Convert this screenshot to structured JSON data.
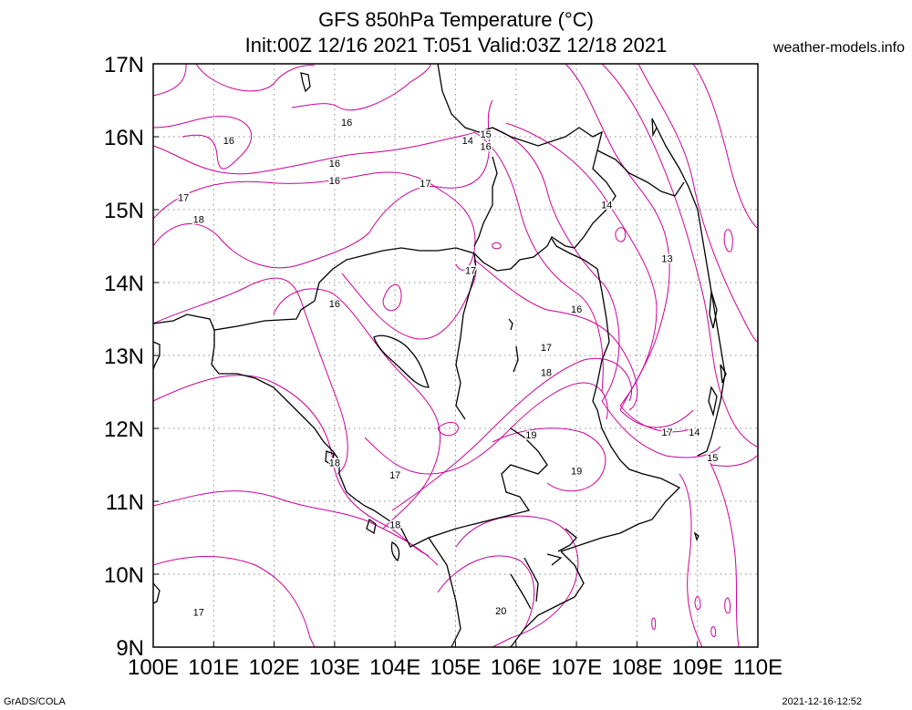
{
  "header": {
    "title_line1": "GFS 850hPa Temperature (°C)",
    "title_line2": "Init:00Z 12/16 2021 T:051 Valid:03Z 12/18 2021",
    "source": "weather-models.info"
  },
  "footer": {
    "left": "GrADS/COLA",
    "right": "2021-12-16-12:52"
  },
  "chart_data": {
    "type": "contour-map",
    "variable": "850hPa Temperature (°C)",
    "lon_range": [
      100,
      110
    ],
    "lat_range": [
      9,
      17
    ],
    "x_tick_labels": [
      "100E",
      "101E",
      "102E",
      "103E",
      "104E",
      "105E",
      "106E",
      "107E",
      "108E",
      "109E",
      "110E"
    ],
    "y_tick_labels": [
      "9N",
      "10N",
      "11N",
      "12N",
      "13N",
      "14N",
      "15N",
      "16N",
      "17N"
    ],
    "grid": true,
    "colors": {
      "contour": "#cc0099",
      "coast": "#000000",
      "grid": "#888888"
    },
    "contour_labels": [
      {
        "text": "16",
        "lon": 103.2,
        "lat": 16.2
      },
      {
        "text": "16",
        "lon": 101.25,
        "lat": 15.95
      },
      {
        "text": "15",
        "lon": 105.5,
        "lat": 16.04
      },
      {
        "text": "14",
        "lon": 105.2,
        "lat": 15.95
      },
      {
        "text": "16",
        "lon": 105.5,
        "lat": 15.87
      },
      {
        "text": "16",
        "lon": 103.0,
        "lat": 15.64
      },
      {
        "text": "16",
        "lon": 103.0,
        "lat": 15.4
      },
      {
        "text": "17",
        "lon": 104.5,
        "lat": 15.36
      },
      {
        "text": "17",
        "lon": 100.5,
        "lat": 15.17
      },
      {
        "text": "18",
        "lon": 100.75,
        "lat": 14.87
      },
      {
        "text": "14",
        "lon": 107.5,
        "lat": 15.07
      },
      {
        "text": "13",
        "lon": 108.5,
        "lat": 14.33
      },
      {
        "text": "17",
        "lon": 105.25,
        "lat": 14.17
      },
      {
        "text": "16",
        "lon": 103.0,
        "lat": 13.71
      },
      {
        "text": "16",
        "lon": 107.0,
        "lat": 13.64
      },
      {
        "text": "17",
        "lon": 106.5,
        "lat": 13.11
      },
      {
        "text": "18",
        "lon": 106.5,
        "lat": 12.77
      },
      {
        "text": "17",
        "lon": 108.5,
        "lat": 11.95
      },
      {
        "text": "14",
        "lon": 108.95,
        "lat": 11.95
      },
      {
        "text": "19",
        "lon": 106.25,
        "lat": 11.91
      },
      {
        "text": "18",
        "lon": 103.0,
        "lat": 11.53
      },
      {
        "text": "15",
        "lon": 109.25,
        "lat": 11.6
      },
      {
        "text": "17",
        "lon": 104.0,
        "lat": 11.36
      },
      {
        "text": "19",
        "lon": 107.0,
        "lat": 11.42
      },
      {
        "text": "18",
        "lon": 104.0,
        "lat": 10.68
      },
      {
        "text": "20",
        "lon": 105.75,
        "lat": 9.5
      },
      {
        "text": "17",
        "lon": 100.75,
        "lat": 9.48
      }
    ]
  }
}
